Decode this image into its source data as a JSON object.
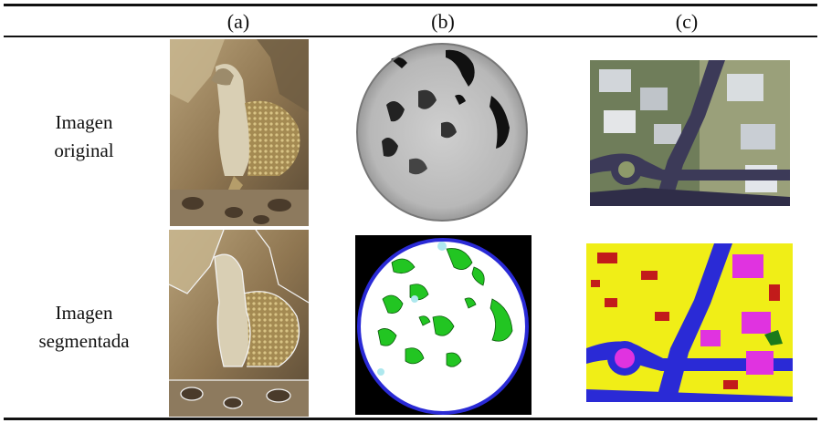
{
  "columns": [
    "(a)",
    "(b)",
    "(c)"
  ],
  "rows": [
    {
      "label_line1": "Imagen",
      "label_line2": "original"
    },
    {
      "label_line1": "Imagen",
      "label_line2": "segmentada"
    }
  ],
  "panels": [
    {
      "column": "(a)",
      "row": "Imagen original",
      "subject": "lizard-photo"
    },
    {
      "column": "(b)",
      "row": "Imagen original",
      "subject": "grayscale-circular-sample"
    },
    {
      "column": "(c)",
      "row": "Imagen original",
      "subject": "aerial-city-photo"
    },
    {
      "column": "(a)",
      "row": "Imagen segmentada",
      "subject": "lizard-photo-with-contours"
    },
    {
      "column": "(b)",
      "row": "Imagen segmentada",
      "subject": "segmented-circular-sample"
    },
    {
      "column": "(c)",
      "row": "Imagen segmentada",
      "subject": "segmented-aerial-map"
    }
  ],
  "colors": {
    "segment_green": "#22c522",
    "segment_blue": "#2a2ad6",
    "segment_yellow": "#f0ee17",
    "segment_magenta": "#e033e0",
    "segment_red": "#c21b1b"
  }
}
